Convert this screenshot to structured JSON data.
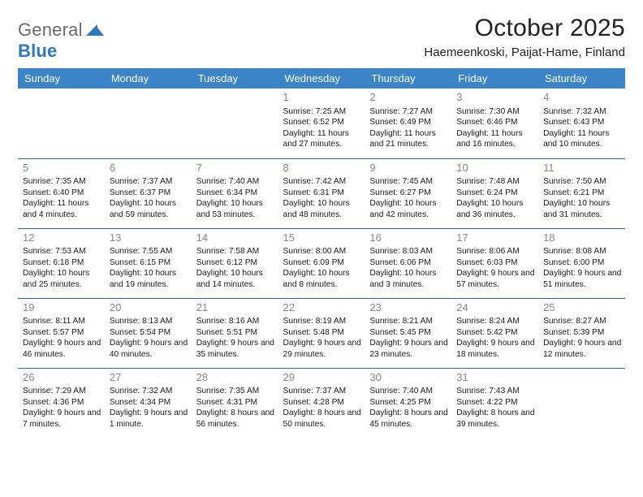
{
  "logo": {
    "word1": "General",
    "word2": "Blue"
  },
  "title": "October 2025",
  "location": "Haemeenkoski, Paijat-Hame, Finland",
  "colors": {
    "header_bg": "#3a84c7",
    "header_text": "#ffffff",
    "row_border": "#2d659b",
    "daynum": "#8a8a8a",
    "text": "#1a1a1a",
    "logo_gray": "#6a6a6a",
    "logo_blue": "#2f78bd",
    "background": "#ffffff"
  },
  "day_headers": [
    "Sunday",
    "Monday",
    "Tuesday",
    "Wednesday",
    "Thursday",
    "Friday",
    "Saturday"
  ],
  "weeks": [
    [
      null,
      null,
      null,
      {
        "n": "1",
        "sunrise": "7:25 AM",
        "sunset": "6:52 PM",
        "daylight": "11 hours and 27 minutes."
      },
      {
        "n": "2",
        "sunrise": "7:27 AM",
        "sunset": "6:49 PM",
        "daylight": "11 hours and 21 minutes."
      },
      {
        "n": "3",
        "sunrise": "7:30 AM",
        "sunset": "6:46 PM",
        "daylight": "11 hours and 16 minutes."
      },
      {
        "n": "4",
        "sunrise": "7:32 AM",
        "sunset": "6:43 PM",
        "daylight": "11 hours and 10 minutes."
      }
    ],
    [
      {
        "n": "5",
        "sunrise": "7:35 AM",
        "sunset": "6:40 PM",
        "daylight": "11 hours and 4 minutes."
      },
      {
        "n": "6",
        "sunrise": "7:37 AM",
        "sunset": "6:37 PM",
        "daylight": "10 hours and 59 minutes."
      },
      {
        "n": "7",
        "sunrise": "7:40 AM",
        "sunset": "6:34 PM",
        "daylight": "10 hours and 53 minutes."
      },
      {
        "n": "8",
        "sunrise": "7:42 AM",
        "sunset": "6:31 PM",
        "daylight": "10 hours and 48 minutes."
      },
      {
        "n": "9",
        "sunrise": "7:45 AM",
        "sunset": "6:27 PM",
        "daylight": "10 hours and 42 minutes."
      },
      {
        "n": "10",
        "sunrise": "7:48 AM",
        "sunset": "6:24 PM",
        "daylight": "10 hours and 36 minutes."
      },
      {
        "n": "11",
        "sunrise": "7:50 AM",
        "sunset": "6:21 PM",
        "daylight": "10 hours and 31 minutes."
      }
    ],
    [
      {
        "n": "12",
        "sunrise": "7:53 AM",
        "sunset": "6:18 PM",
        "daylight": "10 hours and 25 minutes."
      },
      {
        "n": "13",
        "sunrise": "7:55 AM",
        "sunset": "6:15 PM",
        "daylight": "10 hours and 19 minutes."
      },
      {
        "n": "14",
        "sunrise": "7:58 AM",
        "sunset": "6:12 PM",
        "daylight": "10 hours and 14 minutes."
      },
      {
        "n": "15",
        "sunrise": "8:00 AM",
        "sunset": "6:09 PM",
        "daylight": "10 hours and 8 minutes."
      },
      {
        "n": "16",
        "sunrise": "8:03 AM",
        "sunset": "6:06 PM",
        "daylight": "10 hours and 3 minutes."
      },
      {
        "n": "17",
        "sunrise": "8:06 AM",
        "sunset": "6:03 PM",
        "daylight": "9 hours and 57 minutes."
      },
      {
        "n": "18",
        "sunrise": "8:08 AM",
        "sunset": "6:00 PM",
        "daylight": "9 hours and 51 minutes."
      }
    ],
    [
      {
        "n": "19",
        "sunrise": "8:11 AM",
        "sunset": "5:57 PM",
        "daylight": "9 hours and 46 minutes."
      },
      {
        "n": "20",
        "sunrise": "8:13 AM",
        "sunset": "5:54 PM",
        "daylight": "9 hours and 40 minutes."
      },
      {
        "n": "21",
        "sunrise": "8:16 AM",
        "sunset": "5:51 PM",
        "daylight": "9 hours and 35 minutes."
      },
      {
        "n": "22",
        "sunrise": "8:19 AM",
        "sunset": "5:48 PM",
        "daylight": "9 hours and 29 minutes."
      },
      {
        "n": "23",
        "sunrise": "8:21 AM",
        "sunset": "5:45 PM",
        "daylight": "9 hours and 23 minutes."
      },
      {
        "n": "24",
        "sunrise": "8:24 AM",
        "sunset": "5:42 PM",
        "daylight": "9 hours and 18 minutes."
      },
      {
        "n": "25",
        "sunrise": "8:27 AM",
        "sunset": "5:39 PM",
        "daylight": "9 hours and 12 minutes."
      }
    ],
    [
      {
        "n": "26",
        "sunrise": "7:29 AM",
        "sunset": "4:36 PM",
        "daylight": "9 hours and 7 minutes."
      },
      {
        "n": "27",
        "sunrise": "7:32 AM",
        "sunset": "4:34 PM",
        "daylight": "9 hours and 1 minute."
      },
      {
        "n": "28",
        "sunrise": "7:35 AM",
        "sunset": "4:31 PM",
        "daylight": "8 hours and 56 minutes."
      },
      {
        "n": "29",
        "sunrise": "7:37 AM",
        "sunset": "4:28 PM",
        "daylight": "8 hours and 50 minutes."
      },
      {
        "n": "30",
        "sunrise": "7:40 AM",
        "sunset": "4:25 PM",
        "daylight": "8 hours and 45 minutes."
      },
      {
        "n": "31",
        "sunrise": "7:43 AM",
        "sunset": "4:22 PM",
        "daylight": "8 hours and 39 minutes."
      },
      null
    ]
  ]
}
